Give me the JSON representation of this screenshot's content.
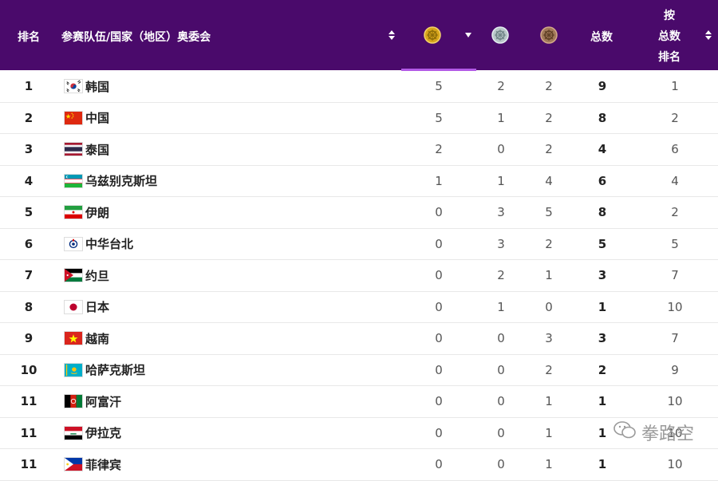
{
  "header": {
    "rank": "排名",
    "team": "参赛队伍/国家（地区）奥委会",
    "total": "总数",
    "by_total_line1": "按",
    "by_total_line2": "总数",
    "by_total_line3": "排名",
    "gold_icon": "gold-medal-icon",
    "silver_icon": "silver-medal-icon",
    "bronze_icon": "bronze-medal-icon",
    "colors": {
      "header_bg": "#4a0a6b",
      "active_underline": "#b259e6"
    }
  },
  "rows": [
    {
      "rank": "1",
      "flag": "korea-flag-icon",
      "country": "韩国",
      "gold": "5",
      "silver": "2",
      "bronze": "2",
      "total": "9",
      "by_total": "1"
    },
    {
      "rank": "2",
      "flag": "china-flag-icon",
      "country": "中国",
      "gold": "5",
      "silver": "1",
      "bronze": "2",
      "total": "8",
      "by_total": "2"
    },
    {
      "rank": "3",
      "flag": "thailand-flag-icon",
      "country": "泰国",
      "gold": "2",
      "silver": "0",
      "bronze": "2",
      "total": "4",
      "by_total": "6"
    },
    {
      "rank": "4",
      "flag": "uzbekistan-flag-icon",
      "country": "乌兹别克斯坦",
      "gold": "1",
      "silver": "1",
      "bronze": "4",
      "total": "6",
      "by_total": "4"
    },
    {
      "rank": "5",
      "flag": "iran-flag-icon",
      "country": "伊朗",
      "gold": "0",
      "silver": "3",
      "bronze": "5",
      "total": "8",
      "by_total": "2"
    },
    {
      "rank": "6",
      "flag": "chinese-taipei-flag-icon",
      "country": "中华台北",
      "gold": "0",
      "silver": "3",
      "bronze": "2",
      "total": "5",
      "by_total": "5"
    },
    {
      "rank": "7",
      "flag": "jordan-flag-icon",
      "country": "约旦",
      "gold": "0",
      "silver": "2",
      "bronze": "1",
      "total": "3",
      "by_total": "7"
    },
    {
      "rank": "8",
      "flag": "japan-flag-icon",
      "country": "日本",
      "gold": "0",
      "silver": "1",
      "bronze": "0",
      "total": "1",
      "by_total": "10"
    },
    {
      "rank": "9",
      "flag": "vietnam-flag-icon",
      "country": "越南",
      "gold": "0",
      "silver": "0",
      "bronze": "3",
      "total": "3",
      "by_total": "7"
    },
    {
      "rank": "10",
      "flag": "kazakhstan-flag-icon",
      "country": "哈萨克斯坦",
      "gold": "0",
      "silver": "0",
      "bronze": "2",
      "total": "2",
      "by_total": "9"
    },
    {
      "rank": "11",
      "flag": "afghanistan-flag-icon",
      "country": "阿富汗",
      "gold": "0",
      "silver": "0",
      "bronze": "1",
      "total": "1",
      "by_total": "10"
    },
    {
      "rank": "11",
      "flag": "iraq-flag-icon",
      "country": "伊拉克",
      "gold": "0",
      "silver": "0",
      "bronze": "1",
      "total": "1",
      "by_total": "10"
    },
    {
      "rank": "11",
      "flag": "philippines-flag-icon",
      "country": "菲律宾",
      "gold": "0",
      "silver": "0",
      "bronze": "1",
      "total": "1",
      "by_total": "10"
    }
  ],
  "watermark": {
    "text": "拳路空",
    "icon": "wechat-icon"
  }
}
